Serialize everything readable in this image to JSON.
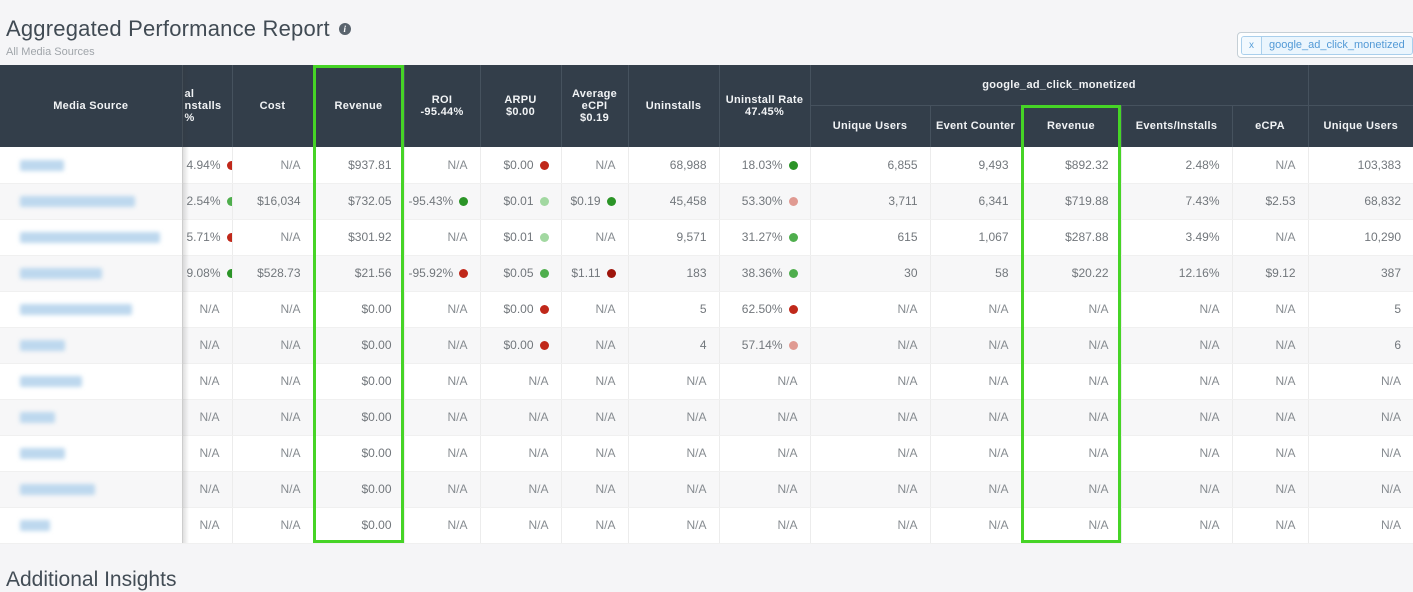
{
  "page": {
    "title": "Aggregated Performance Report",
    "subtitle": "All Media Sources",
    "section_below_title": "Additional Insights"
  },
  "filter": {
    "chip_label": "google_ad_click_monetized",
    "remove_symbol": "x"
  },
  "colors": {
    "highlight_green": "#46d426",
    "header_bg": "#333e4a",
    "chip_blue": "#539ad6"
  },
  "table": {
    "group_header": "google_ad_click_monetized",
    "columns": {
      "media_source": "Media Source",
      "installs_clipped_lines": [
        "al",
        "nstalls",
        "%"
      ],
      "cost": "Cost",
      "revenue": "Revenue",
      "roi": "ROI",
      "roi_total": "-95.44%",
      "arpu": "ARPU",
      "arpu_total": "$0.00",
      "avg_ecpi": "Average eCPI",
      "avg_ecpi_total": "$0.19",
      "uninstalls": "Uninstalls",
      "uninstall_rate": "Uninstall Rate",
      "uninstall_rate_total": "47.45%",
      "unique_users": "Unique Users",
      "event_counter": "Event Counter",
      "revenue2": "Revenue",
      "events_installs": "Events/Installs",
      "ecpa": "eCPA",
      "unique_users2": "Unique Users"
    },
    "dot_colors": {
      "red": "#c0281a",
      "dark_red": "#9e150c",
      "pink": "#e09a92",
      "green": "#4fae4d",
      "light_green": "#a2d8a1",
      "dark_green": "#2b9427"
    },
    "rows": [
      {
        "name_blur_width": 44,
        "cells": [
          {
            "t": "4.94%",
            "d": "red"
          },
          {
            "t": "N/A"
          },
          {
            "t": "$937.81"
          },
          {
            "t": "N/A"
          },
          {
            "t": "$0.00",
            "d": "red"
          },
          {
            "t": "N/A"
          },
          {
            "t": "68,988"
          },
          {
            "t": "18.03%",
            "d": "dark_green"
          },
          {
            "t": "6,855"
          },
          {
            "t": "9,493"
          },
          {
            "t": "$892.32"
          },
          {
            "t": "2.48%"
          },
          {
            "t": "N/A"
          },
          {
            "t": "103,383"
          }
        ]
      },
      {
        "name_blur_width": 115,
        "cells": [
          {
            "t": "2.54%",
            "d": "green"
          },
          {
            "t": "$16,034"
          },
          {
            "t": "$732.05"
          },
          {
            "t": "-95.43%",
            "d": "dark_green"
          },
          {
            "t": "$0.01",
            "d": "light_green"
          },
          {
            "t": "$0.19",
            "d": "dark_green"
          },
          {
            "t": "45,458"
          },
          {
            "t": "53.30%",
            "d": "pink"
          },
          {
            "t": "3,711"
          },
          {
            "t": "6,341"
          },
          {
            "t": "$719.88"
          },
          {
            "t": "7.43%"
          },
          {
            "t": "$2.53"
          },
          {
            "t": "68,832"
          }
        ]
      },
      {
        "name_blur_width": 140,
        "cells": [
          {
            "t": "5.71%",
            "d": "red"
          },
          {
            "t": "N/A"
          },
          {
            "t": "$301.92"
          },
          {
            "t": "N/A"
          },
          {
            "t": "$0.01",
            "d": "light_green"
          },
          {
            "t": "N/A"
          },
          {
            "t": "9,571"
          },
          {
            "t": "31.27%",
            "d": "green"
          },
          {
            "t": "615"
          },
          {
            "t": "1,067"
          },
          {
            "t": "$287.88"
          },
          {
            "t": "3.49%"
          },
          {
            "t": "N/A"
          },
          {
            "t": "10,290"
          }
        ]
      },
      {
        "name_blur_width": 82,
        "cells": [
          {
            "t": "9.08%",
            "d": "dark_green"
          },
          {
            "t": "$528.73"
          },
          {
            "t": "$21.56"
          },
          {
            "t": "-95.92%",
            "d": "red"
          },
          {
            "t": "$0.05",
            "d": "green"
          },
          {
            "t": "$1.11",
            "d": "dark_red"
          },
          {
            "t": "183"
          },
          {
            "t": "38.36%",
            "d": "green"
          },
          {
            "t": "30"
          },
          {
            "t": "58"
          },
          {
            "t": "$20.22"
          },
          {
            "t": "12.16%"
          },
          {
            "t": "$9.12"
          },
          {
            "t": "387"
          }
        ]
      },
      {
        "name_blur_width": 112,
        "cells": [
          {
            "t": "N/A"
          },
          {
            "t": "N/A"
          },
          {
            "t": "$0.00"
          },
          {
            "t": "N/A"
          },
          {
            "t": "$0.00",
            "d": "red"
          },
          {
            "t": "N/A"
          },
          {
            "t": "5"
          },
          {
            "t": "62.50%",
            "d": "red"
          },
          {
            "t": "N/A"
          },
          {
            "t": "N/A"
          },
          {
            "t": "N/A"
          },
          {
            "t": "N/A"
          },
          {
            "t": "N/A"
          },
          {
            "t": "5"
          }
        ]
      },
      {
        "name_blur_width": 45,
        "cells": [
          {
            "t": "N/A"
          },
          {
            "t": "N/A"
          },
          {
            "t": "$0.00"
          },
          {
            "t": "N/A"
          },
          {
            "t": "$0.00",
            "d": "red"
          },
          {
            "t": "N/A"
          },
          {
            "t": "4"
          },
          {
            "t": "57.14%",
            "d": "pink"
          },
          {
            "t": "N/A"
          },
          {
            "t": "N/A"
          },
          {
            "t": "N/A"
          },
          {
            "t": "N/A"
          },
          {
            "t": "N/A"
          },
          {
            "t": "6"
          }
        ]
      },
      {
        "name_blur_width": 62,
        "cells": [
          {
            "t": "N/A"
          },
          {
            "t": "N/A"
          },
          {
            "t": "$0.00"
          },
          {
            "t": "N/A"
          },
          {
            "t": "N/A"
          },
          {
            "t": "N/A"
          },
          {
            "t": "N/A"
          },
          {
            "t": "N/A"
          },
          {
            "t": "N/A"
          },
          {
            "t": "N/A"
          },
          {
            "t": "N/A"
          },
          {
            "t": "N/A"
          },
          {
            "t": "N/A"
          },
          {
            "t": "N/A"
          }
        ]
      },
      {
        "name_blur_width": 35,
        "cells": [
          {
            "t": "N/A"
          },
          {
            "t": "N/A"
          },
          {
            "t": "$0.00"
          },
          {
            "t": "N/A"
          },
          {
            "t": "N/A"
          },
          {
            "t": "N/A"
          },
          {
            "t": "N/A"
          },
          {
            "t": "N/A"
          },
          {
            "t": "N/A"
          },
          {
            "t": "N/A"
          },
          {
            "t": "N/A"
          },
          {
            "t": "N/A"
          },
          {
            "t": "N/A"
          },
          {
            "t": "N/A"
          }
        ]
      },
      {
        "name_blur_width": 45,
        "cells": [
          {
            "t": "N/A"
          },
          {
            "t": "N/A"
          },
          {
            "t": "$0.00"
          },
          {
            "t": "N/A"
          },
          {
            "t": "N/A"
          },
          {
            "t": "N/A"
          },
          {
            "t": "N/A"
          },
          {
            "t": "N/A"
          },
          {
            "t": "N/A"
          },
          {
            "t": "N/A"
          },
          {
            "t": "N/A"
          },
          {
            "t": "N/A"
          },
          {
            "t": "N/A"
          },
          {
            "t": "N/A"
          }
        ]
      },
      {
        "name_blur_width": 75,
        "cells": [
          {
            "t": "N/A"
          },
          {
            "t": "N/A"
          },
          {
            "t": "$0.00"
          },
          {
            "t": "N/A"
          },
          {
            "t": "N/A"
          },
          {
            "t": "N/A"
          },
          {
            "t": "N/A"
          },
          {
            "t": "N/A"
          },
          {
            "t": "N/A"
          },
          {
            "t": "N/A"
          },
          {
            "t": "N/A"
          },
          {
            "t": "N/A"
          },
          {
            "t": "N/A"
          },
          {
            "t": "N/A"
          }
        ]
      },
      {
        "name_blur_width": 30,
        "cells": [
          {
            "t": "N/A"
          },
          {
            "t": "N/A"
          },
          {
            "t": "$0.00"
          },
          {
            "t": "N/A"
          },
          {
            "t": "N/A"
          },
          {
            "t": "N/A"
          },
          {
            "t": "N/A"
          },
          {
            "t": "N/A"
          },
          {
            "t": "N/A"
          },
          {
            "t": "N/A"
          },
          {
            "t": "N/A"
          },
          {
            "t": "N/A"
          },
          {
            "t": "N/A"
          },
          {
            "t": "N/A"
          }
        ]
      }
    ]
  }
}
